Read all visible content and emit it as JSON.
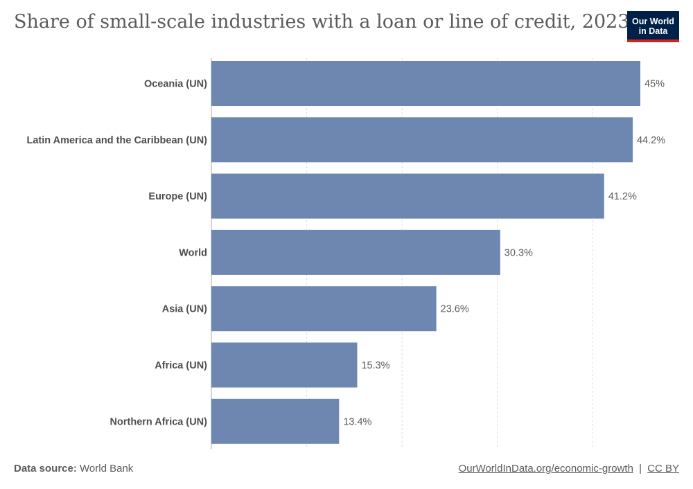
{
  "title": "Share of small-scale industries with a loan or line of credit, 2023",
  "logo": {
    "line1": "Our World",
    "line2": "in Data"
  },
  "footer": {
    "source_label": "Data source:",
    "source_value": "World Bank",
    "link_text": "OurWorldInData.org/economic-growth",
    "separator": "|",
    "license": "CC BY"
  },
  "colors": {
    "bar": "#6d87b1",
    "grid": "#dddddd",
    "axis": "#aaaaaa",
    "label": "#4d4d4d",
    "value": "#5b5b5b",
    "logo_bg": "#002147",
    "logo_accent": "#ce261e"
  },
  "chart_data": {
    "type": "bar",
    "orientation": "horizontal",
    "categories": [
      "Oceania (UN)",
      "Latin America and the Caribbean (UN)",
      "Europe (UN)",
      "World",
      "Asia (UN)",
      "Africa (UN)",
      "Northern Africa (UN)"
    ],
    "values": [
      45,
      44.2,
      41.2,
      30.3,
      23.6,
      15.3,
      13.4
    ],
    "value_labels": [
      "45%",
      "44.2%",
      "41.2%",
      "30.3%",
      "23.6%",
      "15.3%",
      "13.4%"
    ],
    "xlim": [
      0,
      45
    ],
    "grid_values": [
      0,
      10,
      20,
      30,
      40
    ],
    "grid": true,
    "xlabel": "",
    "ylabel": ""
  }
}
